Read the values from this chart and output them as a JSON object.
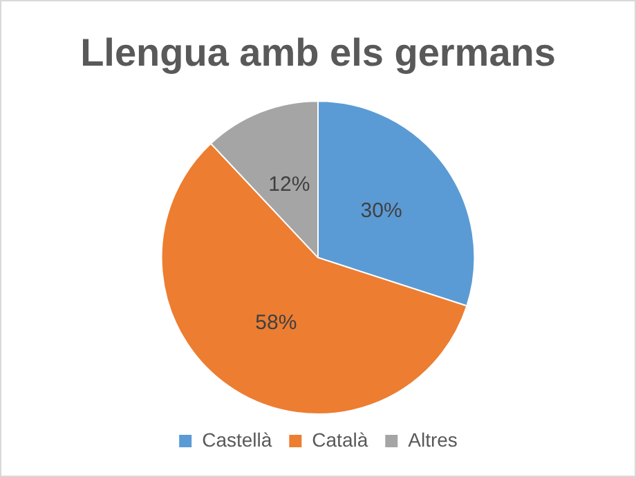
{
  "chart_data": {
    "type": "pie",
    "title": "Llengua amb els germans",
    "categories": [
      "Castellà",
      "Català",
      "Altres"
    ],
    "values": [
      30,
      58,
      12
    ],
    "colors": [
      "#5b9bd5",
      "#ed7d31",
      "#a5a5a5"
    ],
    "value_labels": [
      "30%",
      "58%",
      "12%"
    ],
    "legend": "bottom"
  }
}
